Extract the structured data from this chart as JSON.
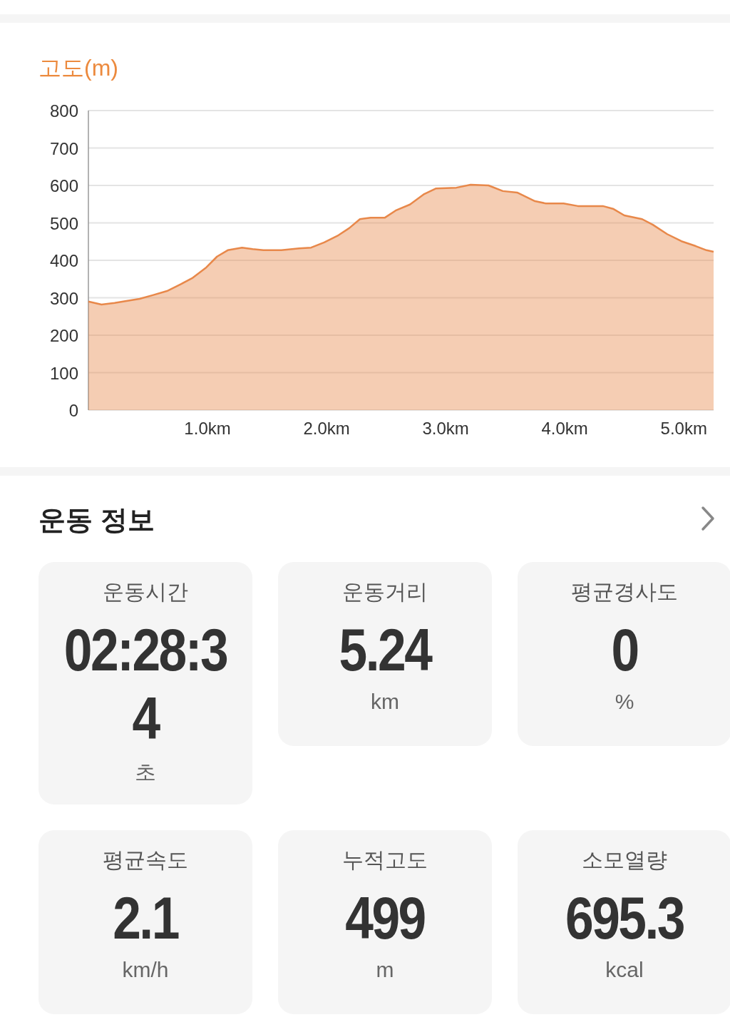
{
  "chart_data": [
    {
      "type": "area",
      "title": "고도(m)",
      "x": [
        0,
        0.11,
        0.22,
        0.31,
        0.43,
        0.54,
        0.66,
        0.78,
        0.87,
        0.99,
        1.08,
        1.17,
        1.29,
        1.38,
        1.47,
        1.62,
        1.77,
        1.87,
        1.98,
        2.1,
        2.19,
        2.28,
        2.37,
        2.49,
        2.58,
        2.7,
        2.82,
        2.92,
        3.09,
        3.21,
        3.36,
        3.48,
        3.6,
        3.75,
        3.84,
        3.99,
        4.11,
        4.32,
        4.41,
        4.5,
        4.65,
        4.74,
        4.86,
        4.98,
        5.1,
        5.19,
        5.25
      ],
      "series": [
        {
          "color": "#e8884a",
          "values": [
            290,
            282,
            286,
            291,
            297,
            307,
            318,
            337,
            352,
            381,
            410,
            427,
            434,
            430,
            427,
            427,
            432,
            434,
            448,
            467,
            486,
            510,
            514,
            514,
            533,
            549,
            577,
            592,
            594,
            602,
            600,
            585,
            581,
            558,
            552,
            552,
            545,
            545,
            537,
            520,
            510,
            495,
            470,
            451,
            438,
            427,
            423
          ]
        }
      ],
      "xlim": [
        0,
        5.25
      ],
      "ylim": [
        0,
        800
      ],
      "xticks": [
        {
          "value": 1,
          "label": "1.0km"
        },
        {
          "value": 2,
          "label": "2.0km"
        },
        {
          "value": 3,
          "label": "3.0km"
        },
        {
          "value": 4,
          "label": "4.0km"
        },
        {
          "value": 5,
          "label": "5.0km"
        }
      ],
      "yticks": [
        0,
        100,
        200,
        300,
        400,
        500,
        600,
        700,
        800
      ],
      "grid": "y"
    },
    {
      "type": "other",
      "title": "운동 정보",
      "annotations": [
        "운동시간",
        "02:28:34",
        "초",
        "운동거리",
        "5.24",
        "km",
        "평균경사도",
        "0",
        "%",
        "평균속도",
        "2.1",
        "km/h",
        "누적고도",
        "499",
        "m",
        "소모열량",
        "695.3",
        "kcal"
      ]
    }
  ]
}
